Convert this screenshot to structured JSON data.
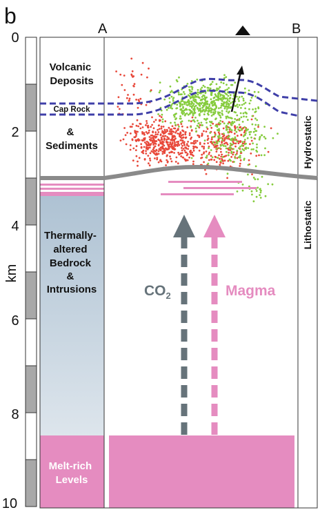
{
  "panel_label": "b",
  "markers": {
    "left": "A",
    "right": "B"
  },
  "depth_axis": {
    "label": "km",
    "ticks": [
      "0",
      "2",
      "4",
      "6",
      "8",
      "10"
    ]
  },
  "column_units": {
    "volcanic": [
      "Volcanic",
      "Deposits"
    ],
    "cap_rock": "Cap Rock",
    "sediments": [
      "&",
      "Sediments"
    ],
    "bedrock": [
      "Thermally-",
      "altered",
      "Bedrock",
      "&",
      "Intrusions"
    ],
    "melt": [
      "Melt-rich",
      "Levels"
    ]
  },
  "flows": {
    "co2": {
      "text": "CO",
      "subscript": "2"
    },
    "magma": "Magma"
  },
  "pressure": {
    "upper": "Hydrostatic",
    "lower": "Lithostatic"
  },
  "colors": {
    "magma": "#e58cc0",
    "co2_arrow": "#66737a",
    "cap_dash": "#3f3fa8",
    "interface": "#8a8a8a",
    "dot_red": "#e8483a",
    "dot_green": "#86cc3e",
    "bedrock_top": "#aec2d3",
    "bedrock_bottom": "#dde5ec",
    "scale_gray": "#a8a8a8"
  }
}
